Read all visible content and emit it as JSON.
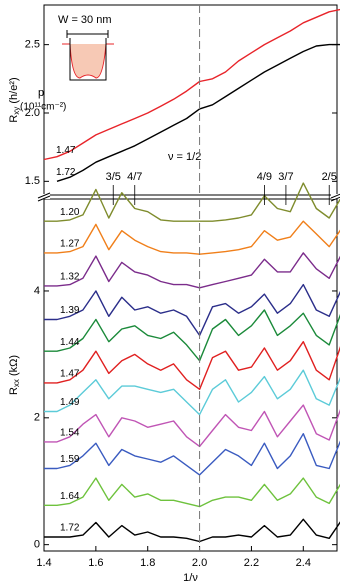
{
  "chart_data": [
    {
      "type": "line",
      "ylabel": {
        "main": "R",
        "sub": "xy",
        "unit": " (h/e²)"
      },
      "inset_label": "W = 30 nm",
      "legend_title": [
        "p",
        "(10¹¹cm⁻²)"
      ],
      "annotation": "ν = 1/2",
      "x": [
        1.4,
        1.45,
        1.5,
        1.55,
        1.6,
        1.65,
        1.7,
        1.75,
        1.8,
        1.85,
        1.9,
        1.95,
        2.0,
        2.05,
        2.1,
        2.15,
        2.2,
        2.25,
        2.3,
        2.35,
        2.4,
        2.45,
        2.5,
        2.55
      ],
      "xlim": [
        1.4,
        2.53
      ],
      "ylim": [
        1.4,
        2.79
      ],
      "yticks": [
        1.5,
        {
          "value": 2.0,
          "label": "2.0"
        },
        2.5
      ],
      "series": [
        {
          "name": "1.47",
          "color": "#e8242a",
          "values": [
            1.66,
            1.68,
            1.72,
            1.78,
            1.84,
            1.88,
            1.92,
            1.96,
            2.0,
            2.05,
            2.1,
            2.16,
            2.23,
            2.25,
            2.3,
            2.38,
            2.44,
            2.5,
            2.55,
            2.6,
            2.66,
            2.7,
            2.74,
            2.76
          ]
        },
        {
          "name": "1.72",
          "color": "#000000",
          "values": [
            null,
            1.5,
            1.53,
            1.58,
            1.64,
            1.68,
            1.72,
            1.76,
            1.81,
            1.86,
            1.91,
            1.96,
            2.03,
            2.06,
            2.12,
            2.18,
            2.24,
            2.3,
            2.35,
            2.4,
            2.45,
            2.49,
            2.5,
            2.5
          ]
        }
      ]
    },
    {
      "type": "line",
      "ylabel": {
        "main": "R",
        "sub": "xx",
        "unit": " (kΩ)"
      },
      "xlabel": "1/ν",
      "x": [
        1.4,
        1.45,
        1.5,
        1.55,
        1.6,
        1.65,
        1.7,
        1.75,
        1.8,
        1.85,
        1.9,
        1.95,
        2.0,
        2.05,
        2.1,
        2.15,
        2.2,
        2.25,
        2.3,
        2.35,
        2.4,
        2.45,
        2.5,
        2.55
      ],
      "xlim": [
        1.4,
        2.53
      ],
      "xticks": [
        {
          "value": 1.4,
          "label": "1.4"
        },
        1.6,
        1.8,
        {
          "value": 2.0,
          "label": "2.0"
        },
        2.2,
        2.4
      ],
      "ylim": [
        -0.1,
        5.45
      ],
      "yticks": [
        0,
        2,
        4
      ],
      "vline": 2,
      "annotations": [
        {
          "text": "3/5",
          "x": 1.667
        },
        {
          "text": "4/7",
          "x": 1.75
        },
        {
          "text": "4/9",
          "x": 2.25
        },
        {
          "text": "3/7",
          "x": 2.333
        },
        {
          "text": "2/5",
          "x": 2.5
        }
      ],
      "series": [
        {
          "name": "1.20",
          "color": "#7f8c2d",
          "values": [
            5.1,
            5.1,
            5.12,
            5.2,
            5.6,
            5.15,
            5.55,
            5.3,
            5.25,
            5.12,
            5.1,
            5.1,
            5.1,
            5.1,
            5.12,
            5.15,
            5.2,
            5.5,
            5.3,
            5.25,
            5.7,
            5.3,
            5.15,
            5.5
          ]
        },
        {
          "name": "1.27",
          "color": "#f07f1a",
          "values": [
            4.6,
            4.6,
            4.62,
            4.7,
            5.05,
            4.65,
            4.95,
            4.8,
            4.7,
            4.62,
            4.6,
            4.6,
            4.58,
            4.6,
            4.62,
            4.65,
            4.7,
            4.95,
            4.8,
            4.85,
            5.1,
            4.9,
            4.7,
            5.0
          ]
        },
        {
          "name": "1.32",
          "color": "#7b2c8b",
          "values": [
            4.08,
            4.08,
            4.1,
            4.2,
            4.55,
            4.15,
            4.45,
            4.3,
            4.25,
            4.15,
            4.1,
            4.1,
            4.05,
            4.1,
            4.15,
            4.2,
            4.25,
            4.5,
            4.3,
            4.3,
            4.6,
            4.35,
            4.2,
            4.6
          ]
        },
        {
          "name": "1.39",
          "color": "#2b2e8a",
          "values": [
            3.55,
            3.55,
            3.6,
            3.7,
            4.0,
            3.6,
            3.9,
            3.7,
            3.75,
            3.65,
            3.7,
            3.6,
            3.3,
            3.75,
            3.8,
            3.65,
            3.75,
            3.95,
            3.65,
            3.8,
            4.1,
            3.7,
            3.6,
            4.05
          ]
        },
        {
          "name": "1.44",
          "color": "#1b8a3a",
          "values": [
            3.05,
            3.05,
            3.1,
            3.25,
            3.55,
            3.2,
            3.4,
            3.45,
            3.3,
            3.25,
            3.35,
            3.15,
            2.9,
            3.4,
            3.55,
            3.3,
            3.45,
            3.7,
            3.3,
            3.45,
            3.65,
            3.3,
            3.15,
            3.7
          ]
        },
        {
          "name": "1.47",
          "color": "#e02020",
          "values": [
            2.55,
            2.55,
            2.6,
            2.75,
            3.05,
            2.7,
            2.9,
            3.0,
            2.85,
            2.75,
            2.85,
            2.6,
            2.45,
            2.95,
            3.05,
            2.75,
            2.8,
            3.1,
            2.75,
            2.9,
            3.2,
            2.75,
            2.6,
            3.2
          ]
        },
        {
          "name": "1.49",
          "color": "#5ccbd8",
          "values": [
            2.1,
            2.1,
            2.2,
            2.4,
            2.6,
            2.3,
            2.5,
            2.5,
            2.45,
            2.4,
            2.45,
            2.25,
            2.05,
            2.45,
            2.6,
            2.25,
            2.4,
            2.65,
            2.3,
            2.45,
            2.75,
            2.3,
            2.2,
            2.7
          ]
        },
        {
          "name": "1.54",
          "color": "#c055b5",
          "values": [
            1.62,
            1.62,
            1.7,
            1.9,
            2.05,
            1.7,
            2.0,
            1.95,
            1.85,
            1.9,
            1.95,
            1.7,
            1.55,
            1.8,
            2.05,
            1.85,
            1.8,
            2.1,
            1.7,
            1.95,
            2.2,
            1.75,
            1.65,
            2.2
          ]
        },
        {
          "name": "1.59",
          "color": "#3a5bc0",
          "values": [
            1.2,
            1.2,
            1.25,
            1.4,
            1.6,
            1.25,
            1.5,
            1.4,
            1.35,
            1.3,
            1.4,
            1.25,
            1.1,
            1.3,
            1.5,
            1.4,
            1.25,
            1.6,
            1.2,
            1.4,
            1.75,
            1.25,
            1.2,
            1.7
          ]
        },
        {
          "name": "1.64",
          "color": "#6ec23d",
          "values": [
            0.62,
            0.62,
            0.65,
            0.75,
            1.05,
            0.7,
            0.95,
            0.75,
            0.8,
            0.7,
            0.7,
            0.65,
            0.6,
            0.7,
            0.75,
            0.75,
            0.7,
            0.95,
            0.7,
            0.8,
            1.05,
            0.75,
            0.65,
            1.0
          ]
        },
        {
          "name": "1.72",
          "color": "#000000",
          "values": [
            0.12,
            0.12,
            0.12,
            0.15,
            0.35,
            0.12,
            0.3,
            0.15,
            0.2,
            0.12,
            0.12,
            0.1,
            0.05,
            0.12,
            0.12,
            0.15,
            0.12,
            0.3,
            0.12,
            0.15,
            0.4,
            0.15,
            0.1,
            0.4
          ]
        }
      ]
    }
  ]
}
